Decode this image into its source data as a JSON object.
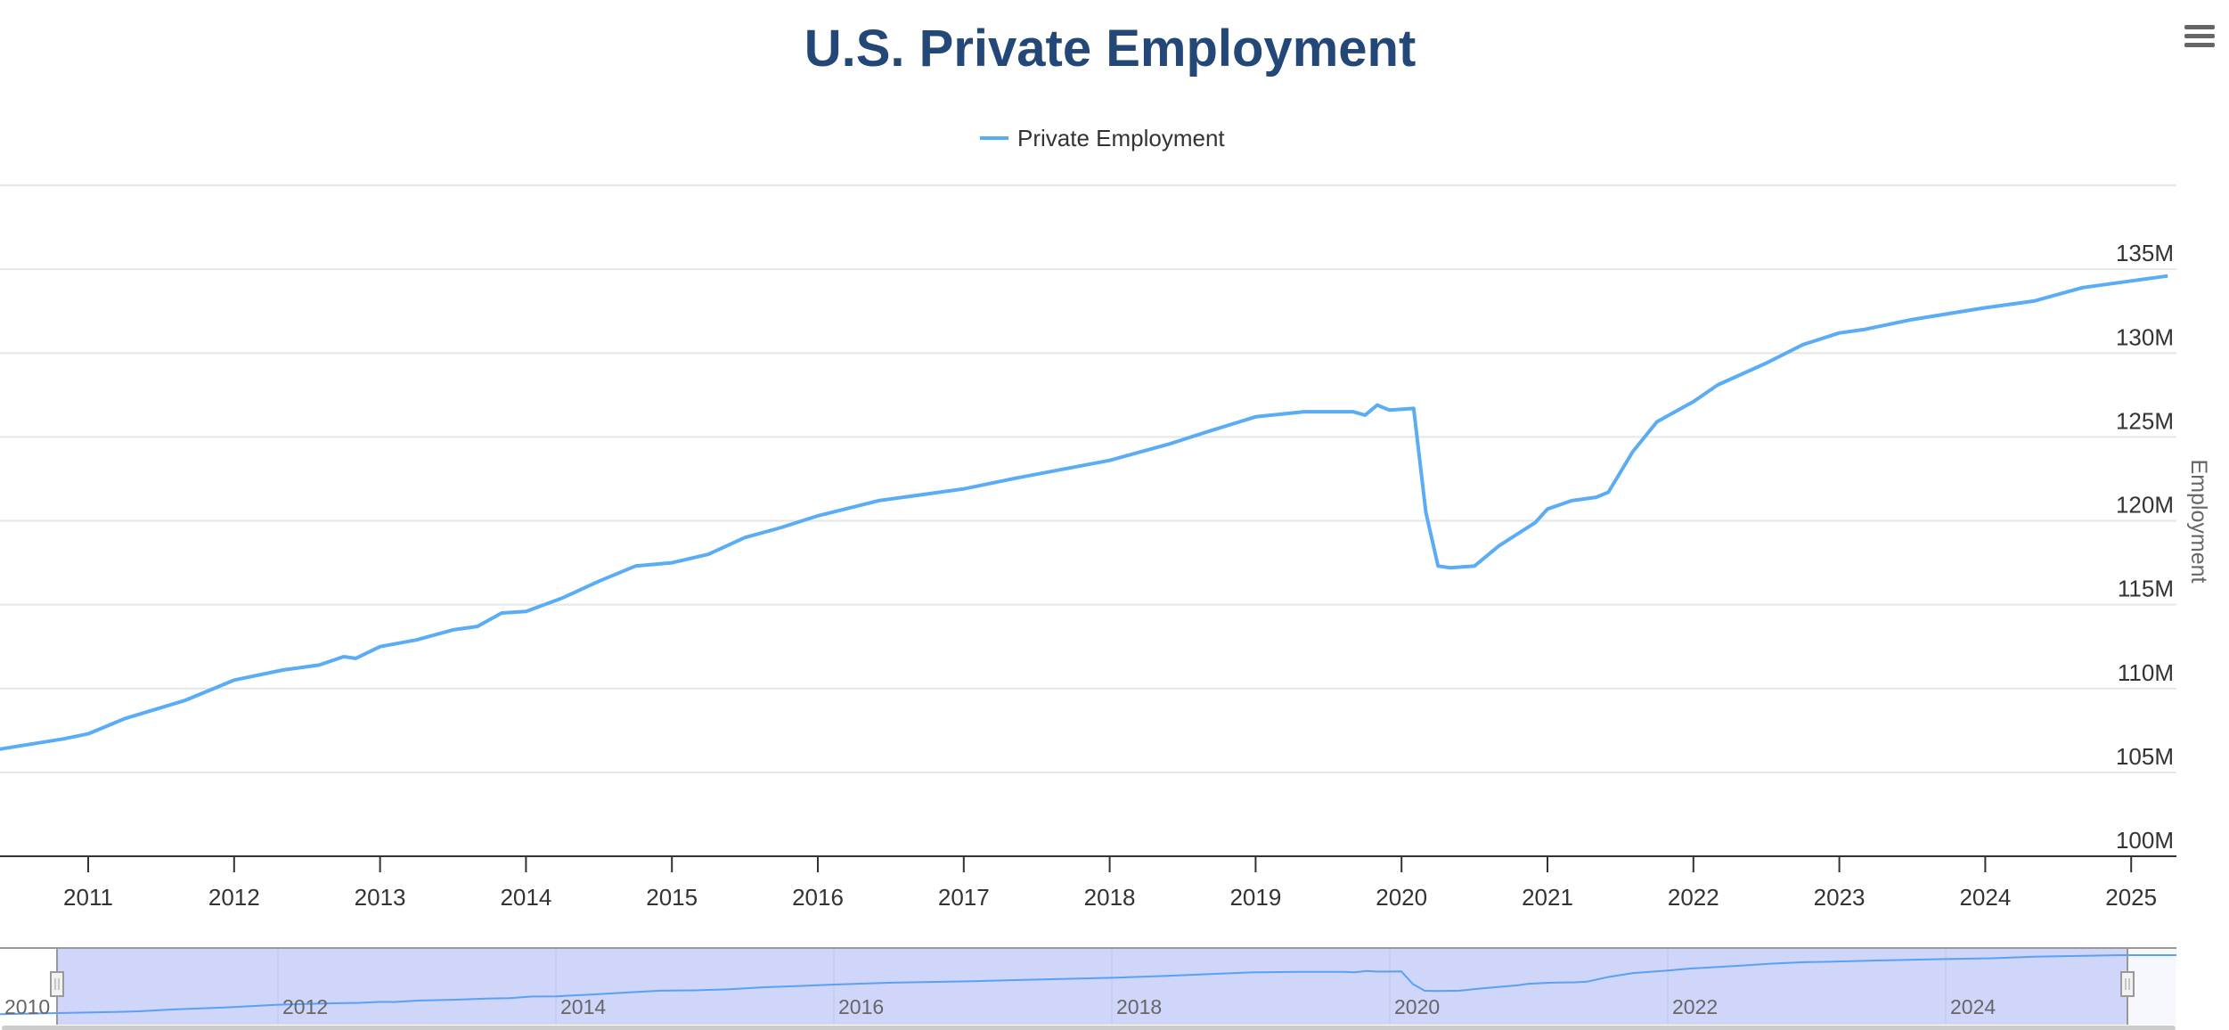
{
  "chart_data": {
    "type": "line",
    "title": "U.S. Private Employment",
    "xlabel": "",
    "ylabel": "Employment",
    "ylim": [
      100,
      140
    ],
    "xlim": [
      "2010-05",
      "2025-04"
    ],
    "grid": true,
    "legend": "top-center",
    "y_ticks": [
      "100M",
      "105M",
      "110M",
      "115M",
      "120M",
      "125M",
      "130M",
      "135M"
    ],
    "x_ticks": [
      "2011",
      "2012",
      "2013",
      "2014",
      "2015",
      "2016",
      "2017",
      "2018",
      "2019",
      "2020",
      "2021",
      "2022",
      "2023",
      "2024",
      "2025"
    ],
    "navigator_ticks": [
      "2010",
      "2012",
      "2014",
      "2016",
      "2018",
      "2020",
      "2022",
      "2024"
    ],
    "series": [
      {
        "name": "Private Employment",
        "color": "#5aacf5",
        "unit": "millions",
        "points": [
          [
            "2010-01",
            105.9
          ],
          [
            "2010-05",
            106.3
          ],
          [
            "2010-11",
            107.0
          ],
          [
            "2011-01",
            107.3
          ],
          [
            "2011-04",
            108.2
          ],
          [
            "2011-09",
            109.3
          ],
          [
            "2012-01",
            110.5
          ],
          [
            "2012-05",
            111.1
          ],
          [
            "2012-08",
            111.4
          ],
          [
            "2012-10",
            111.9
          ],
          [
            "2012-11",
            111.8
          ],
          [
            "2013-01",
            112.5
          ],
          [
            "2013-04",
            112.9
          ],
          [
            "2013-07",
            113.5
          ],
          [
            "2013-09",
            113.7
          ],
          [
            "2013-11",
            114.5
          ],
          [
            "2014-01",
            114.6
          ],
          [
            "2014-04",
            115.4
          ],
          [
            "2014-07",
            116.4
          ],
          [
            "2014-10",
            117.3
          ],
          [
            "2015-01",
            117.5
          ],
          [
            "2015-04",
            118.0
          ],
          [
            "2015-07",
            119.0
          ],
          [
            "2015-10",
            119.6
          ],
          [
            "2016-01",
            120.3
          ],
          [
            "2016-06",
            121.2
          ],
          [
            "2017-01",
            121.9
          ],
          [
            "2017-05",
            122.5
          ],
          [
            "2018-01",
            123.6
          ],
          [
            "2018-06",
            124.6
          ],
          [
            "2018-09",
            125.3
          ],
          [
            "2019-01",
            126.2
          ],
          [
            "2019-05",
            126.5
          ],
          [
            "2019-09",
            126.5
          ],
          [
            "2019-10",
            126.3
          ],
          [
            "2019-11",
            126.9
          ],
          [
            "2019-12",
            126.6
          ],
          [
            "2020-02",
            126.7
          ],
          [
            "2020-03",
            120.5
          ],
          [
            "2020-04",
            117.3
          ],
          [
            "2020-05",
            117.2
          ],
          [
            "2020-07",
            117.3
          ],
          [
            "2020-09",
            118.5
          ],
          [
            "2020-12",
            119.9
          ],
          [
            "2021-01",
            120.7
          ],
          [
            "2021-03",
            121.2
          ],
          [
            "2021-05",
            121.4
          ],
          [
            "2021-06",
            121.7
          ],
          [
            "2021-08",
            124.1
          ],
          [
            "2021-10",
            125.9
          ],
          [
            "2022-01",
            127.1
          ],
          [
            "2022-03",
            128.1
          ],
          [
            "2022-07",
            129.4
          ],
          [
            "2022-10",
            130.5
          ],
          [
            "2023-01",
            131.2
          ],
          [
            "2023-03",
            131.4
          ],
          [
            "2023-07",
            132.0
          ],
          [
            "2024-01",
            132.7
          ],
          [
            "2024-05",
            133.1
          ],
          [
            "2024-09",
            133.9
          ],
          [
            "2025-01",
            134.3
          ],
          [
            "2025-04",
            134.6
          ]
        ]
      }
    ]
  },
  "legend": {
    "label": "Private Employment"
  },
  "menu": {
    "icon": "hamburger-menu-icon"
  }
}
